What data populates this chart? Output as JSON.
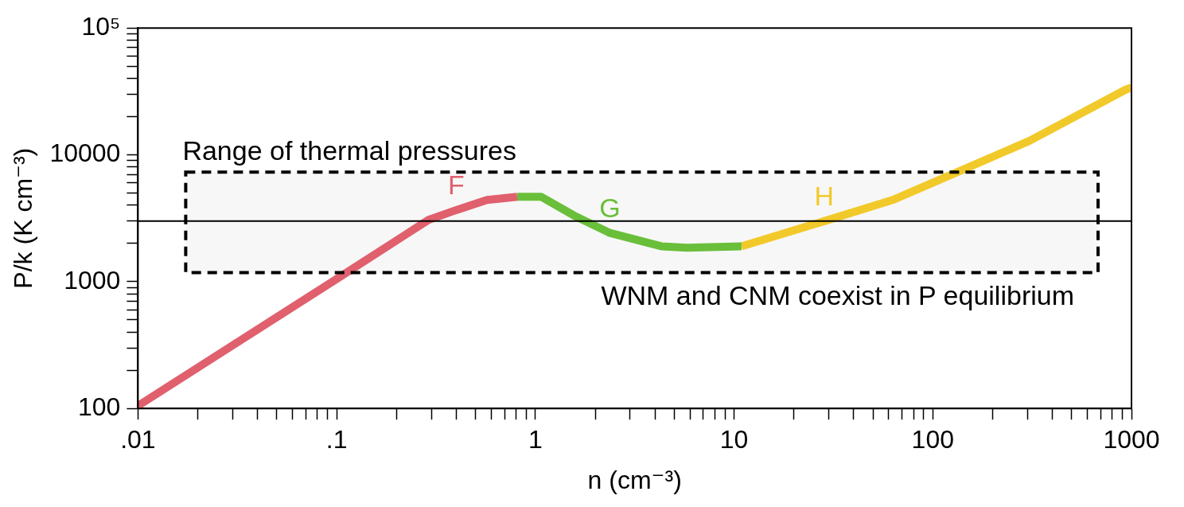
{
  "chart_data": {
    "type": "line",
    "xlabel": "n (cm⁻³)",
    "ylabel": "P/k (K cm⁻³)",
    "log": "xy",
    "grid": false,
    "legend": false,
    "line_style": "solid",
    "marker": "none",
    "xlim": [
      0.01,
      1000
    ],
    "ylim": [
      100,
      100000
    ],
    "xticks": [
      {
        "value": 0.01,
        "label": ".01"
      },
      {
        "value": 0.02,
        "label": null
      },
      {
        "value": 0.03,
        "label": null
      },
      {
        "value": 0.04,
        "label": null
      },
      {
        "value": 0.05,
        "label": null
      },
      {
        "value": 0.06,
        "label": null
      },
      {
        "value": 0.07,
        "label": null
      },
      {
        "value": 0.08,
        "label": null
      },
      {
        "value": 0.09,
        "label": null
      },
      {
        "value": 0.1,
        "label": ".1"
      },
      {
        "value": 0.2,
        "label": null
      },
      {
        "value": 0.3,
        "label": null
      },
      {
        "value": 0.4,
        "label": null
      },
      {
        "value": 0.5,
        "label": null
      },
      {
        "value": 0.6,
        "label": null
      },
      {
        "value": 0.7,
        "label": null
      },
      {
        "value": 0.8,
        "label": null
      },
      {
        "value": 0.9,
        "label": null
      },
      1,
      {
        "value": 2,
        "label": null
      },
      {
        "value": 3,
        "label": null
      },
      {
        "value": 4,
        "label": null
      },
      {
        "value": 5,
        "label": null
      },
      {
        "value": 6,
        "label": null
      },
      {
        "value": 7,
        "label": null
      },
      {
        "value": 8,
        "label": null
      },
      {
        "value": 9,
        "label": null
      },
      10,
      {
        "value": 20,
        "label": null
      },
      {
        "value": 30,
        "label": null
      },
      {
        "value": 40,
        "label": null
      },
      {
        "value": 50,
        "label": null
      },
      {
        "value": 60,
        "label": null
      },
      {
        "value": 70,
        "label": null
      },
      {
        "value": 80,
        "label": null
      },
      {
        "value": 90,
        "label": null
      },
      100,
      {
        "value": 200,
        "label": null
      },
      {
        "value": 300,
        "label": null
      },
      {
        "value": 400,
        "label": null
      },
      {
        "value": 500,
        "label": null
      },
      {
        "value": 600,
        "label": null
      },
      {
        "value": 700,
        "label": null
      },
      {
        "value": 800,
        "label": null
      },
      {
        "value": 900,
        "label": null
      },
      1000
    ],
    "yticks": [
      100,
      {
        "value": 200,
        "label": null
      },
      {
        "value": 300,
        "label": null
      },
      {
        "value": 400,
        "label": null
      },
      {
        "value": 500,
        "label": null
      },
      {
        "value": 600,
        "label": null
      },
      {
        "value": 700,
        "label": null
      },
      {
        "value": 800,
        "label": null
      },
      {
        "value": 900,
        "label": null
      },
      1000,
      {
        "value": 2000,
        "label": null
      },
      {
        "value": 3000,
        "label": null
      },
      {
        "value": 4000,
        "label": null
      },
      {
        "value": 5000,
        "label": null
      },
      {
        "value": 6000,
        "label": null
      },
      {
        "value": 7000,
        "label": null
      },
      {
        "value": 8000,
        "label": null
      },
      {
        "value": 9000,
        "label": null
      },
      10000,
      {
        "value": 20000,
        "label": null
      },
      {
        "value": 30000,
        "label": null
      },
      {
        "value": 40000,
        "label": null
      },
      {
        "value": 50000,
        "label": null
      },
      {
        "value": 60000,
        "label": null
      },
      {
        "value": 70000,
        "label": null
      },
      {
        "value": 80000,
        "label": null
      },
      {
        "value": 90000,
        "label": null
      },
      {
        "value": 100000,
        "label": "10⁵"
      }
    ],
    "series": [
      {
        "name": "F",
        "color": "#e0606e",
        "x": [
          0.01,
          0.1,
          0.29,
          0.4,
          0.57,
          0.81
        ],
        "values": [
          105,
          1050,
          3070,
          3670,
          4400,
          4670
        ]
      },
      {
        "name": "G",
        "color": "#6abf3a",
        "x": [
          0.81,
          1.07,
          1.6,
          2.37,
          4.3,
          5.8,
          10.9
        ],
        "values": [
          4670,
          4670,
          3260,
          2420,
          1900,
          1850,
          1900
        ]
      },
      {
        "name": "H",
        "color": "#f2c92a",
        "x": [
          10.9,
          28.4,
          62.7,
          139,
          307,
          933,
          1000
        ],
        "values": [
          1900,
          3000,
          4400,
          7530,
          12900,
          32600,
          34000
        ]
      }
    ],
    "ref_lines": [
      {
        "axis": "y",
        "value": 3000,
        "color": "#000000",
        "line_style": "solid"
      }
    ],
    "bands": [
      {
        "axis": "y",
        "from": 1180,
        "to": 7300,
        "label": "Range of thermal pressures",
        "color": "#000000"
      }
    ],
    "annotations": [
      "WNM and CNM coexist in P equilibrium"
    ]
  }
}
